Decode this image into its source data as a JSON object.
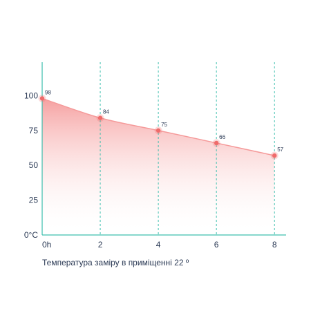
{
  "chart_data": {
    "type": "area",
    "title": "",
    "xlabel": "",
    "ylabel": "",
    "x": [
      0,
      2,
      4,
      6,
      8
    ],
    "x_tick_labels": [
      "0h",
      "2",
      "4",
      "6",
      "8"
    ],
    "values": [
      98,
      84,
      75,
      66,
      57
    ],
    "point_labels": [
      "98",
      "84",
      "75",
      "66",
      "57"
    ],
    "y_ticks": [
      0,
      25,
      50,
      75,
      100
    ],
    "y_tick_labels": [
      "0°C",
      "25",
      "50",
      "75",
      "100"
    ],
    "ylim": [
      0,
      124
    ],
    "xlim": [
      0,
      8.4
    ],
    "grid": "vertical dashed at x ticks",
    "legend": "none"
  },
  "caption": "Температура заміру в приміщенні 22 º",
  "colors": {
    "axis": "#3dbfae",
    "grid": "#3dbfae",
    "line": "#f59a9a",
    "area_top": "#f49090",
    "marker": "#ef6b6b",
    "text": "#2b3a55"
  }
}
